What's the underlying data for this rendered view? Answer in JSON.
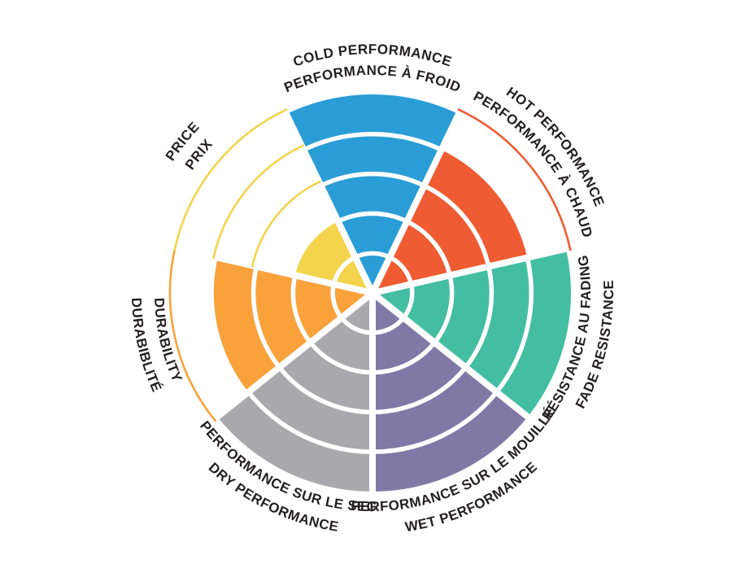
{
  "chart_data": {
    "type": "pie",
    "subtype": "segmented-rating-wheel",
    "title": "",
    "max_value": 5,
    "rings": 5,
    "direction": "clockwise",
    "start": "top",
    "background_color": "#ffffff",
    "text_color": "#231f20",
    "separator_color": "#ffffff",
    "grid": "white concentric ring separators inside filled sectors; thin sector-colored arcs mark unfilled ring levels",
    "legend_position": "curved bilingual labels around the outside of the wheel",
    "categories": [
      {
        "id": "cold-performance",
        "line_outer": "COLD PERFORMANCE",
        "line_inner": "PERFORMANCE À FROID",
        "value": 5,
        "color": "#2a9dd7",
        "label_orientation": "normal"
      },
      {
        "id": "hot-performance",
        "line_outer": "HOT PERFORMANCE",
        "line_inner": "PERFORMANCE À CHAUD",
        "value": 4,
        "color": "#ef5b32",
        "label_orientation": "normal"
      },
      {
        "id": "fade-resistance",
        "line_outer": "FADE RESISTANCE",
        "line_inner": "RÉSISTANCE AU FADING",
        "value": 5,
        "color": "#44bea3",
        "label_orientation": "reversed"
      },
      {
        "id": "wet-performance",
        "line_outer": "WET PERFORMANCE",
        "line_inner": "PERFORMANCE SUR LE MOUILLÉ",
        "value": 5,
        "color": "#8179a5",
        "label_orientation": "reversed"
      },
      {
        "id": "dry-performance",
        "line_outer": "DRY PERFORMANCE",
        "line_inner": "PERFORMANCE SUR LE SEC",
        "value": 5,
        "color": "#a9a9ad",
        "label_orientation": "reversed"
      },
      {
        "id": "durability",
        "line_outer": "DURABIBLITÉ",
        "line_inner": "DURABILITY",
        "value": 4,
        "color": "#f9a23c",
        "label_orientation": "reversed"
      },
      {
        "id": "price",
        "line_outer": "PRICE",
        "line_inner": "PRIX",
        "value": 2,
        "color": "#f3d44c",
        "label_orientation": "normal"
      }
    ]
  }
}
